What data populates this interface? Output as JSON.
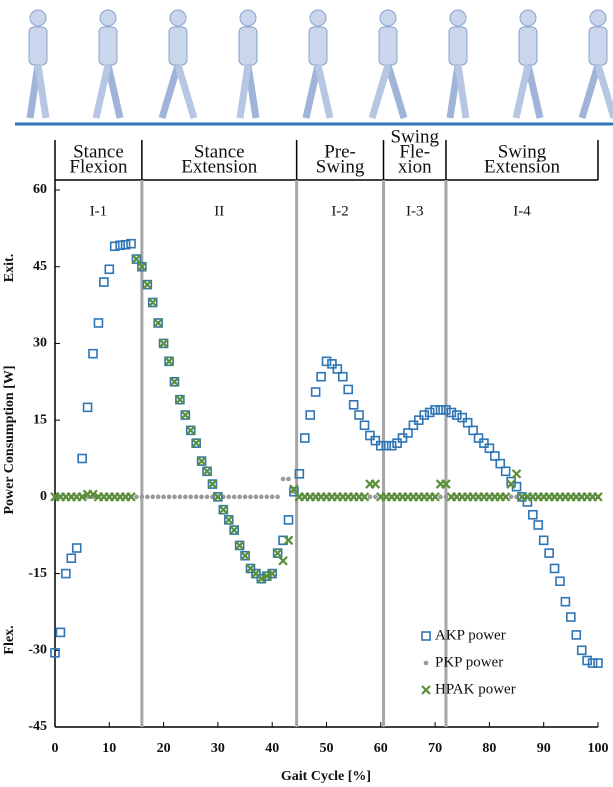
{
  "chart_data": {
    "type": "scatter",
    "xlabel": "Gait Cycle [%]",
    "ylabel": "Power Consumption [W]",
    "ext_label": "Exit.",
    "flex_label": "Flex.",
    "xlim": [
      0,
      100
    ],
    "ylim": [
      -45,
      60
    ],
    "xticks": [
      0,
      10,
      20,
      30,
      40,
      50,
      60,
      70,
      80,
      90,
      100
    ],
    "yticks": [
      -45,
      -30,
      -15,
      0,
      15,
      30,
      45,
      60
    ],
    "phase_boundaries": [
      16,
      44.5,
      60.5,
      72
    ],
    "phases": [
      {
        "label": [
          "Stance",
          "Flexion"
        ],
        "region": "I-1"
      },
      {
        "label": [
          "Stance",
          "Extension"
        ],
        "region": "II"
      },
      {
        "label": [
          "Pre-",
          "Swing"
        ],
        "region": "I-2"
      },
      {
        "label": [
          "Swing",
          "Fle-",
          "xion"
        ],
        "region": "I-3"
      },
      {
        "label": [
          "Swing",
          "Extension"
        ],
        "region": "I-4"
      }
    ],
    "x": [
      0,
      1,
      2,
      3,
      4,
      5,
      6,
      7,
      8,
      9,
      10,
      11,
      12,
      13,
      14,
      15,
      16,
      17,
      18,
      19,
      20,
      21,
      22,
      23,
      24,
      25,
      26,
      27,
      28,
      29,
      30,
      31,
      32,
      33,
      34,
      35,
      36,
      37,
      38,
      39,
      40,
      41,
      42,
      43,
      44,
      45,
      46,
      47,
      48,
      49,
      50,
      51,
      52,
      53,
      54,
      55,
      56,
      57,
      58,
      59,
      60,
      61,
      62,
      63,
      64,
      65,
      66,
      67,
      68,
      69,
      70,
      71,
      72,
      73,
      74,
      75,
      76,
      77,
      78,
      79,
      80,
      81,
      82,
      83,
      84,
      85,
      86,
      87,
      88,
      89,
      90,
      91,
      92,
      93,
      94,
      95,
      96,
      97,
      98,
      99,
      100
    ],
    "series": [
      {
        "name": "AKP power",
        "color": "#2e75b6",
        "marker": "square",
        "values": [
          -30.5,
          -26.5,
          -15,
          -12,
          -10,
          7.5,
          17.5,
          28,
          34,
          42,
          44.5,
          49,
          49.2,
          49.3,
          49.5,
          46.5,
          45,
          41.5,
          38,
          34,
          30,
          26.5,
          22.5,
          19,
          16,
          13,
          10.5,
          7,
          5,
          2.5,
          0,
          -2.5,
          -4.5,
          -6.5,
          -9.5,
          -11.5,
          -14,
          -15,
          -16,
          -15.5,
          -15,
          -11,
          -8.5,
          -4.5,
          1,
          4.5,
          11.5,
          16,
          20.5,
          23.5,
          26.5,
          26,
          25,
          23.5,
          21,
          18,
          16,
          14,
          12,
          11,
          10,
          10,
          10,
          10.5,
          11.5,
          12.5,
          14,
          15,
          16,
          16.5,
          17,
          17,
          17,
          16.5,
          16,
          15.5,
          14.5,
          13,
          11.5,
          10.5,
          9.5,
          8,
          6.5,
          5,
          3,
          2,
          0,
          -1,
          -3.5,
          -5.5,
          -8.5,
          -11,
          -14,
          -16.5,
          -20.5,
          -23.5,
          -27,
          -30,
          -32,
          -32.5,
          -32.5
        ]
      },
      {
        "name": "PKP power",
        "color": "#999999",
        "marker": "dot",
        "values": [
          0,
          0,
          0,
          0,
          0,
          0,
          0,
          0,
          0,
          0,
          0,
          0,
          0,
          0,
          0,
          0,
          0,
          0,
          0,
          0,
          0,
          0,
          0,
          0,
          0,
          0,
          0,
          0,
          0,
          0,
          0,
          0,
          0,
          0,
          0,
          0,
          0,
          0,
          0,
          0,
          0,
          0,
          3.5,
          3.5,
          1,
          0,
          0,
          0,
          0,
          0,
          0,
          0,
          0,
          0,
          0,
          0,
          0,
          0,
          0,
          0,
          0,
          0,
          0,
          0,
          0,
          0,
          0,
          0,
          0,
          0,
          0,
          0,
          0,
          0,
          0,
          0,
          0,
          0,
          0,
          0,
          0,
          0,
          0,
          0,
          0,
          0,
          0,
          0,
          0,
          0,
          0,
          0,
          0,
          0,
          0,
          0,
          0,
          0,
          0,
          0,
          0
        ]
      },
      {
        "name": "HPAK power",
        "color": "#5b8f3a",
        "marker": "cross",
        "values": [
          0,
          0,
          0,
          0,
          0,
          0,
          0.5,
          0.5,
          0,
          0,
          0,
          0,
          0,
          0,
          0,
          46.5,
          45,
          41.5,
          38,
          34,
          30,
          26.5,
          22.5,
          19,
          16,
          13,
          10.5,
          7,
          5,
          2.5,
          0,
          -2.5,
          -4.5,
          -6.5,
          -9.5,
          -11.5,
          -14,
          -15,
          -16,
          -15.5,
          -15,
          -11,
          -12.5,
          -8.5,
          1.5,
          0,
          0,
          0,
          0,
          0,
          0,
          0,
          0,
          0,
          0,
          0,
          0,
          0,
          2.5,
          2.5,
          0,
          0,
          0,
          0,
          0,
          0,
          0,
          0,
          0,
          0,
          0,
          2.5,
          2.5,
          0,
          0,
          0,
          0,
          0,
          0,
          0,
          0,
          0,
          0,
          0,
          2.5,
          4.5,
          0,
          0,
          0,
          0,
          0,
          0,
          0,
          0,
          0,
          0,
          0,
          0,
          0,
          0,
          0
        ]
      }
    ],
    "legend": "lower right"
  }
}
